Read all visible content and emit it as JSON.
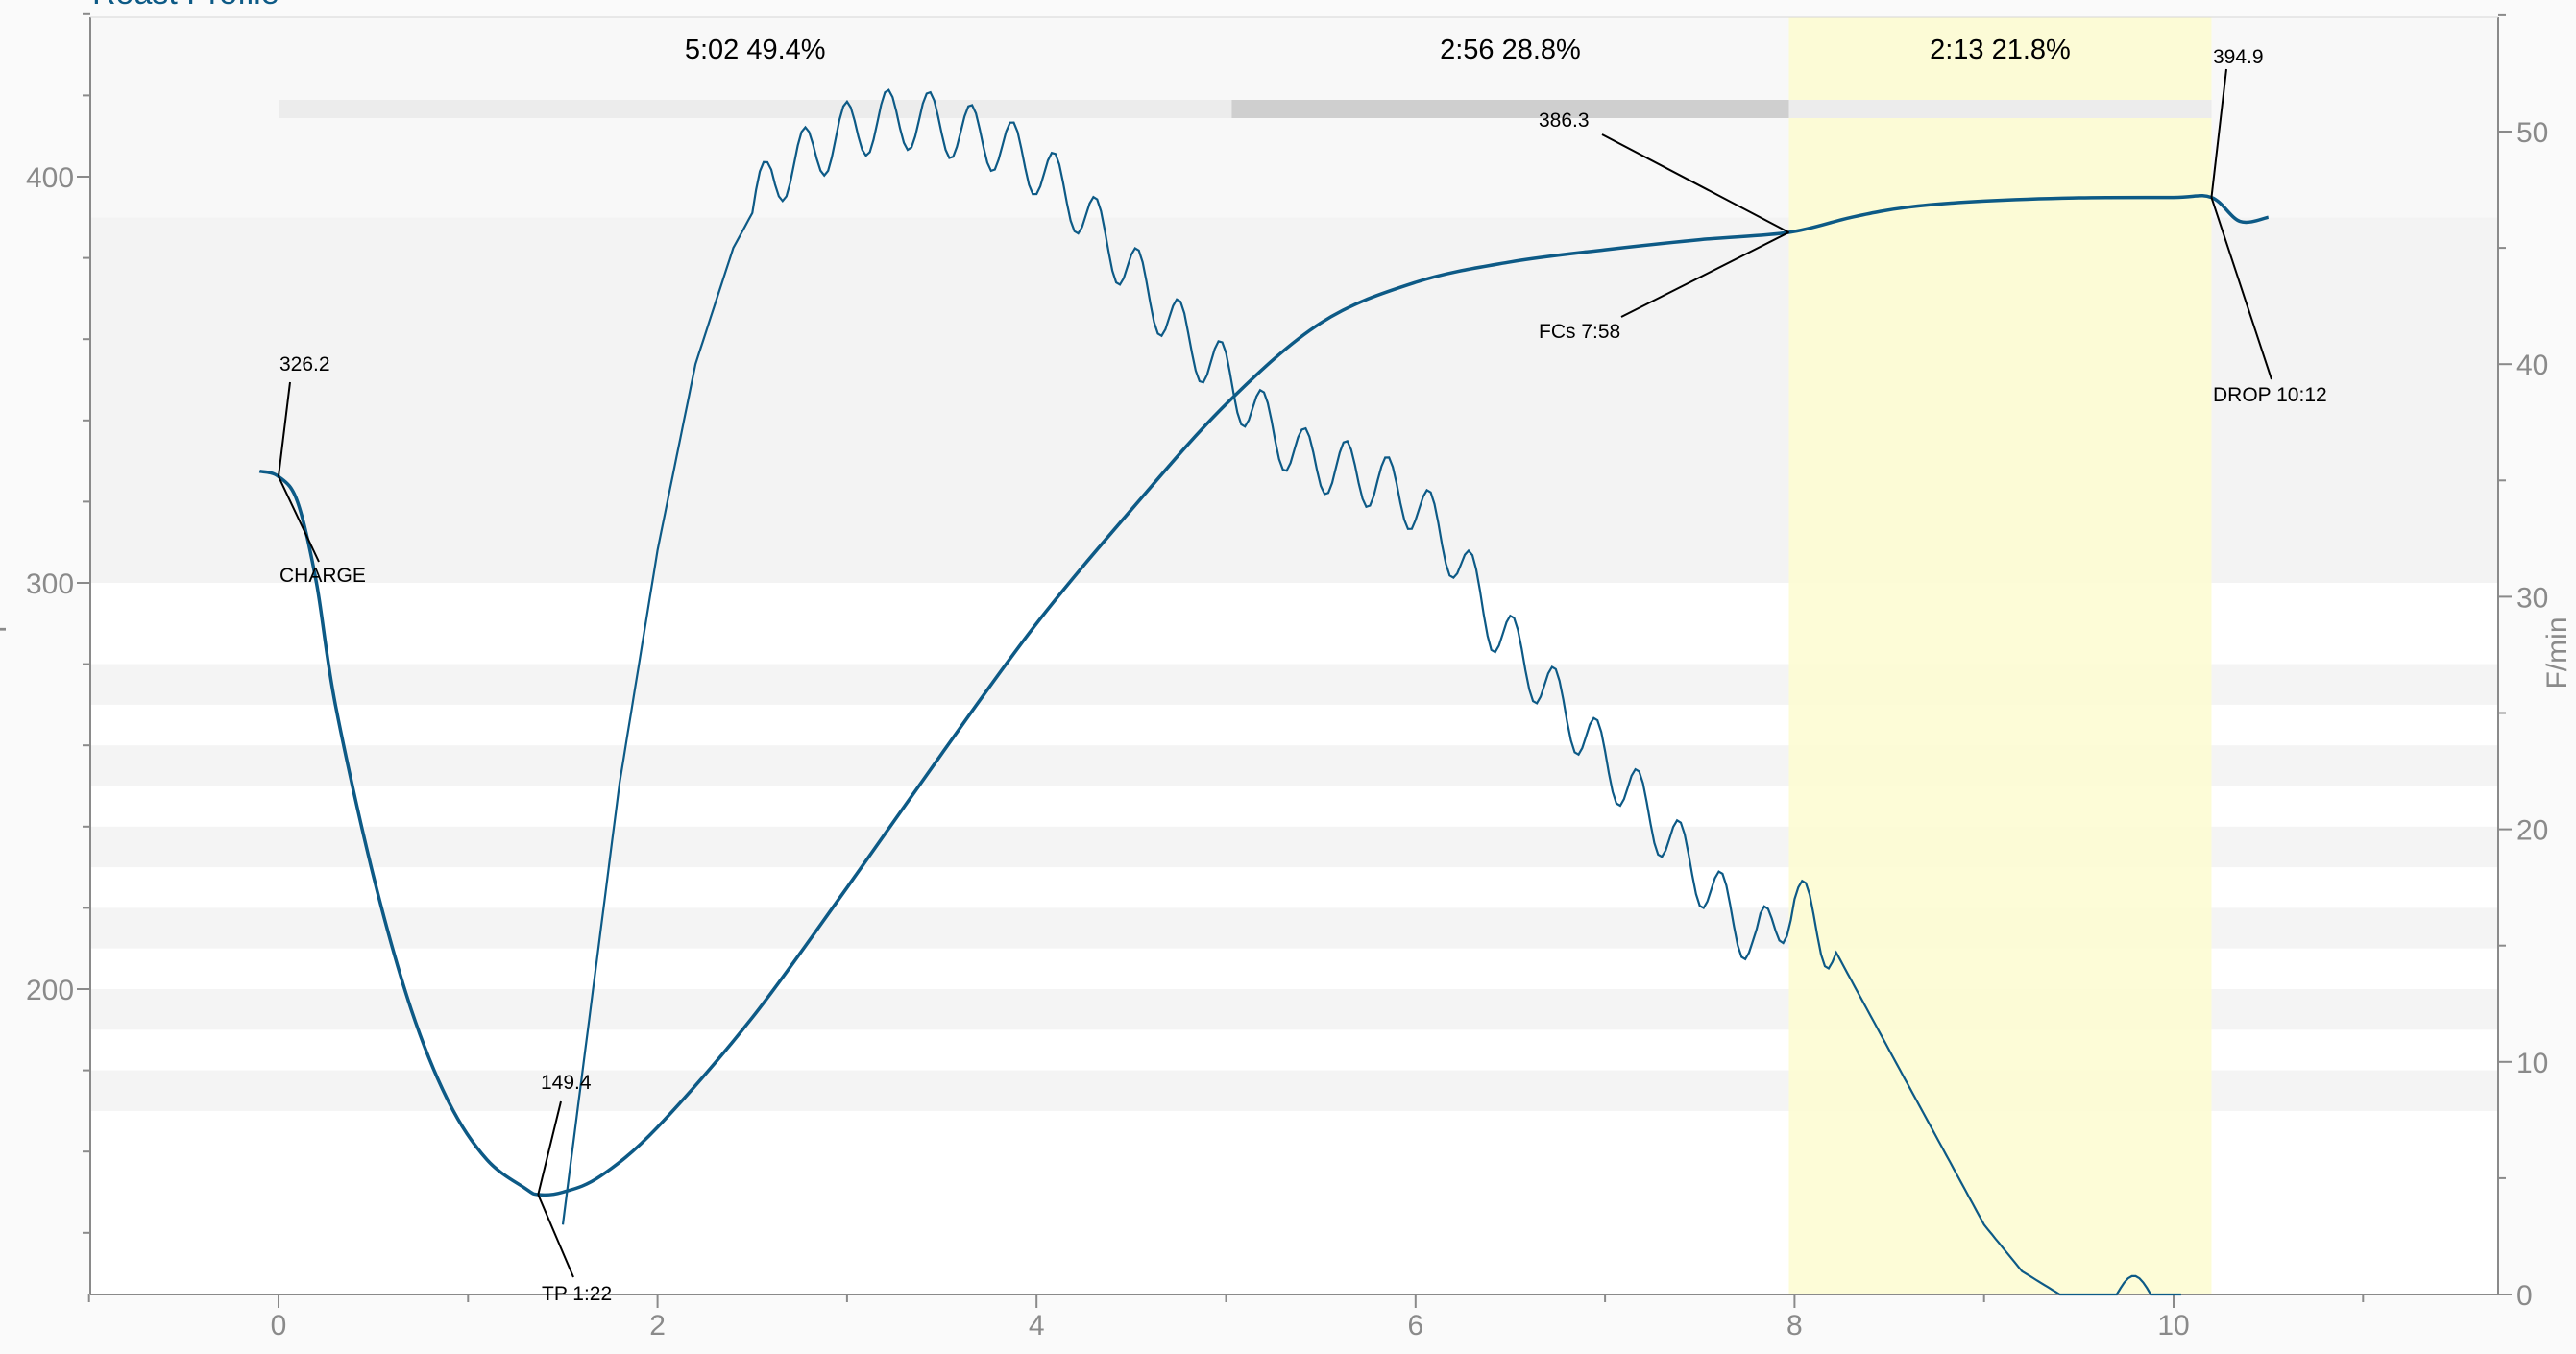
{
  "chart_data": {
    "type": "line",
    "title_partial": "Roast Profile",
    "x_axis": {
      "range": [
        -1.5,
        11.8
      ],
      "ticks": [
        0,
        2,
        4,
        6,
        8,
        10
      ],
      "tick_labels": [
        "0",
        "2",
        "4",
        "6",
        "8",
        "10"
      ]
    },
    "y_left": {
      "range": [
        126,
        440
      ],
      "ticks": [
        200,
        300,
        400
      ],
      "tick_labels": [
        "200",
        "300",
        "400"
      ],
      "label_partial": "F"
    },
    "y_right": {
      "range": [
        0,
        55
      ],
      "ticks": [
        0,
        10,
        20,
        30,
        40,
        50
      ],
      "tick_labels": [
        "0",
        "10",
        "20",
        "30",
        "40",
        "50"
      ],
      "label": "F/min"
    },
    "colors": {
      "bt_line": "#0d5a86",
      "ror_line": "#0d5a86",
      "dev_highlight": "#fdfcd0",
      "band_dark": "#f3f3f3",
      "band_light": "#f4f4f4",
      "phase_bar_light": "#ececec",
      "phase_bar_dark": "#cfcfcf",
      "axis": "#8a8a8a"
    },
    "series": [
      {
        "axis": "left",
        "x": [
          0,
          0.1,
          0.2,
          0.3,
          0.5,
          0.7,
          0.9,
          1.1,
          1.3,
          1.37,
          1.5,
          1.7,
          2.0,
          2.5,
          3.0,
          3.5,
          4.0,
          4.5,
          5.0,
          5.5,
          6.0,
          6.5,
          7.0,
          7.5,
          7.97,
          8.3,
          8.6,
          9.0,
          9.5,
          10.0,
          10.2,
          10.35,
          10.5
        ],
        "y": [
          326.2,
          320,
          300,
          270,
          228,
          195,
          172,
          158,
          151,
          149.4,
          150,
          154,
          166,
          193,
          225,
          258,
          290,
          318,
          344,
          364,
          374,
          379,
          382,
          384.5,
          386.3,
          390,
          392.5,
          394,
          394.8,
          394.9,
          394.9,
          389,
          390
        ]
      },
      {
        "axis": "right",
        "x": [
          1.5,
          1.8,
          2.0,
          2.2,
          2.4,
          2.6,
          2.8,
          3.0,
          3.2,
          3.4,
          3.6,
          3.8,
          4.0,
          4.2,
          4.4,
          4.6,
          4.8,
          5.0,
          5.2,
          5.4,
          5.6,
          5.8,
          6.0,
          6.2,
          6.4,
          6.6,
          6.8,
          7.0,
          7.2,
          7.4,
          7.6,
          7.8,
          8.0,
          8.2,
          8.4,
          8.6,
          8.8,
          9.0,
          9.2,
          9.4,
          9.6,
          9.8,
          10.0,
          10.1
        ],
        "y": [
          3,
          22,
          32,
          40,
          45,
          48,
          49,
          50,
          50.5,
          50.5,
          50,
          49.5,
          48.5,
          47,
          45,
          43,
          41,
          39.5,
          37.5,
          36,
          35.5,
          35,
          34,
          32,
          29,
          27,
          25,
          23,
          21,
          19,
          17,
          15,
          17,
          15,
          12,
          9,
          6,
          3,
          1,
          0,
          0,
          0,
          0,
          0
        ]
      }
    ],
    "events": {
      "charge": {
        "label": "CHARGE",
        "value_label": "326.2"
      },
      "tp": {
        "label": "TP 1:22",
        "value_label": "149.4"
      },
      "fcs": {
        "label": "FCs 7:58",
        "value_label": "386.3"
      },
      "drop": {
        "label": "DROP 10:12",
        "value_label": "394.9"
      }
    },
    "phases": [
      {
        "label": "5:02  49.4%",
        "start": 0,
        "end": 5.03
      },
      {
        "label": "2:56  28.8%",
        "start": 5.03,
        "end": 7.97
      },
      {
        "label": "2:13  21.8%",
        "start": 7.97,
        "end": 10.2
      }
    ],
    "grid": false,
    "legend": "none"
  }
}
